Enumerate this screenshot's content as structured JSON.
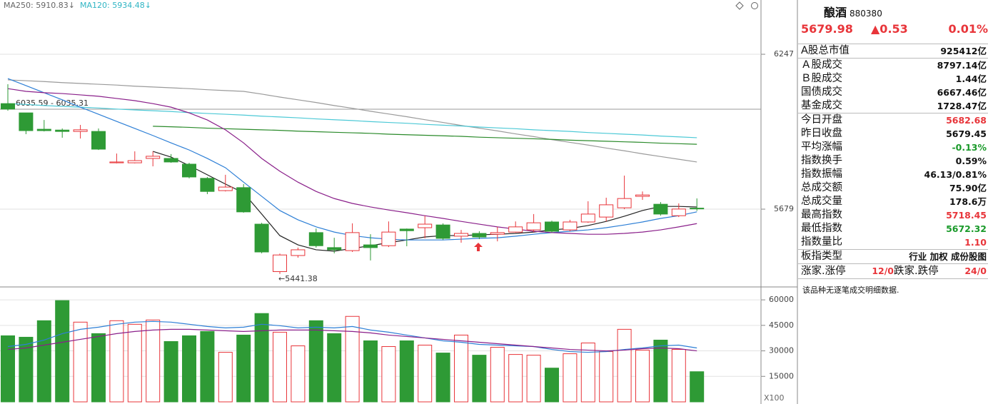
{
  "chart_data": [
    {
      "type": "candlestick",
      "indicators": [
        {
          "text": "MA250: 5910.83↓",
          "color": "#666666"
        },
        {
          "text": "MA120: 5934.48↓",
          "color": "#2fb5c4"
        }
      ],
      "open": [
        6066,
        6032,
        5972,
        5969,
        5964,
        5964,
        5849,
        5849,
        5865,
        5865,
        5844,
        5792,
        5747,
        5758,
        5624,
        5450,
        5509,
        5593,
        5538,
        5527,
        5548,
        5545,
        5606,
        5611,
        5621,
        5580,
        5590,
        5587,
        5595,
        5603,
        5632,
        5603,
        5632,
        5650,
        5684,
        5726,
        5697,
        5655,
        5682.68
      ],
      "high": [
        6137,
        6032,
        6006,
        5975,
        5988,
        5975,
        5883,
        5891,
        5891,
        5881,
        5849,
        5797,
        5805,
        5771,
        5629,
        5516,
        5538,
        5608,
        5574,
        5627,
        5587,
        5634,
        5608,
        5655,
        5627,
        5603,
        5598,
        5614,
        5634,
        5661,
        5637,
        5640,
        5708,
        5721,
        5802,
        5744,
        5705,
        5700,
        5718.45
      ],
      "low": [
        6040,
        5954,
        5964,
        5941,
        5938,
        5896,
        5847,
        5847,
        5836,
        5849,
        5792,
        5734,
        5744,
        5666,
        5517,
        5441.38,
        5501,
        5538,
        5517,
        5522,
        5491,
        5540,
        5543,
        5572,
        5566,
        5556,
        5569,
        5561,
        5593,
        5595,
        5593,
        5598,
        5629,
        5634,
        5679,
        5713,
        5655,
        5650,
        5672.32
      ],
      "close": [
        6046,
        5967,
        5967,
        5964,
        5970,
        5899,
        5852,
        5857,
        5873,
        5852,
        5797,
        5744,
        5760,
        5669,
        5522,
        5511,
        5530,
        5545,
        5530,
        5593,
        5538,
        5595,
        5600,
        5624,
        5572,
        5590,
        5577,
        5593,
        5614,
        5629,
        5598,
        5632,
        5661,
        5695,
        5718,
        5731,
        5661,
        5679.45,
        5679.98
      ],
      "up_color": "#e8353a",
      "down_color": "#2e9a35",
      "lines": [
        {
          "color": "#9a9a9a",
          "values": [
            6153,
            6150,
            6147,
            6143,
            6140,
            6137,
            6134,
            6130,
            6127,
            6124,
            6121,
            6117,
            6114,
            6111,
            6101,
            6090,
            6080,
            6070,
            6059,
            6049,
            6038,
            6028,
            6018,
            6007,
            5997,
            5986,
            5976,
            5966,
            5955,
            5945,
            5934,
            5924,
            5914,
            5903,
            5893,
            5882,
            5872,
            5862,
            5852
          ]
        },
        {
          "color": "#4cc9d6",
          "values": [
            6066,
            6063,
            6059,
            6056,
            6053,
            6050,
            6046,
            6043,
            6040,
            6037,
            6033,
            6030,
            6027,
            6024,
            6020,
            6017,
            6014,
            6010,
            6007,
            6004,
            6000,
            5997,
            5994,
            5990,
            5987,
            5984,
            5980,
            5977,
            5974,
            5970,
            5967,
            5964,
            5960,
            5957,
            5954,
            5951,
            5947,
            5944,
            5941
          ]
        },
        {
          "color": "#2a8a2a",
          "values": [
            null,
            null,
            null,
            null,
            null,
            null,
            null,
            null,
            5983,
            5981,
            5979,
            5976,
            5974,
            5972,
            5970,
            5968,
            5965,
            5963,
            5961,
            5959,
            5957,
            5954,
            5952,
            5950,
            5948,
            5946,
            5943,
            5941,
            5939,
            5937,
            5935,
            5932,
            5930,
            5928,
            5926,
            5924,
            5921,
            5919,
            5917
          ]
        },
        {
          "color": "#222222",
          "values": [
            null,
            null,
            null,
            null,
            null,
            null,
            null,
            null,
            5891,
            5870,
            5839,
            5805,
            5771,
            5739,
            5661,
            5582,
            5548,
            5530,
            5525,
            5535,
            5545,
            5556,
            5566,
            5577,
            5582,
            5582,
            5585,
            5587,
            5590,
            5595,
            5603,
            5608,
            5619,
            5634,
            5653,
            5674,
            5689,
            5689,
            5687
          ]
        },
        {
          "color": "#2d7fd6",
          "values": [
            6158,
            6132,
            6106,
            6080,
            6053,
            6027,
            6001,
            5975,
            5949,
            5922,
            5896,
            5865,
            5831,
            5778,
            5726,
            5674,
            5640,
            5614,
            5595,
            5582,
            5574,
            5569,
            5566,
            5566,
            5566,
            5569,
            5572,
            5574,
            5580,
            5587,
            5593,
            5598,
            5603,
            5611,
            5621,
            5632,
            5645,
            5655,
            5669
          ]
        },
        {
          "color": "#8a1f8a",
          "values": [
            6121,
            6111,
            6106,
            6103,
            6098,
            6093,
            6085,
            6077,
            6066,
            6053,
            6032,
            6006,
            5970,
            5922,
            5865,
            5818,
            5778,
            5744,
            5718,
            5700,
            5687,
            5676,
            5666,
            5655,
            5645,
            5634,
            5624,
            5614,
            5606,
            5598,
            5593,
            5590,
            5587,
            5587,
            5590,
            5595,
            5603,
            5614,
            5626
          ]
        }
      ],
      "annotations": [
        "6035.59 - 6035.31",
        "←5441.38"
      ],
      "ylim": [
        5399,
        6446
      ],
      "yticks": [
        5679,
        6247
      ]
    },
    {
      "type": "bar",
      "values": [
        38870,
        38020,
        47740,
        59570,
        46900,
        40140,
        47740,
        45630,
        48160,
        35490,
        38870,
        41400,
        29150,
        39290,
        51970,
        40980,
        32950,
        47740,
        40140,
        50280,
        35910,
        32530,
        35910,
        33380,
        28730,
        39290,
        27460,
        32110,
        27880,
        27460,
        19860,
        28310,
        34640,
        29570,
        42670,
        30420,
        36330,
        30840,
        17740
      ],
      "lines": [
        {
          "color": "#2d7fd6",
          "values": [
            32530,
            33800,
            36330,
            40140,
            42670,
            43940,
            45630,
            46900,
            47320,
            46900,
            45630,
            44360,
            43520,
            43940,
            45630,
            44790,
            43520,
            43940,
            43520,
            44360,
            42250,
            40980,
            39290,
            37600,
            35910,
            35070,
            33800,
            33380,
            32950,
            32530,
            30840,
            29570,
            29150,
            29570,
            30840,
            31690,
            32950,
            33380,
            31690
          ]
        },
        {
          "color": "#8a1f8a",
          "values": [
            30840,
            31690,
            33380,
            35070,
            36760,
            38450,
            40140,
            41400,
            42250,
            42670,
            42670,
            42250,
            41830,
            41400,
            41830,
            42250,
            42250,
            42250,
            41830,
            41400,
            40560,
            39290,
            38450,
            37600,
            36760,
            35910,
            35070,
            34220,
            33380,
            32530,
            31690,
            30840,
            30420,
            30000,
            30420,
            31270,
            31690,
            31270,
            30000
          ]
        }
      ],
      "unit_label": "X100",
      "ylim": [
        0,
        66340
      ],
      "yticks": [
        15000,
        30000,
        45000,
        60000
      ]
    }
  ],
  "quote_panel": {
    "name": "酿酒",
    "code": "880380",
    "price": "5679.98",
    "change": "▲0.53",
    "change_pct": "0.01%",
    "price_color": "#e8353a",
    "groups": [
      [
        {
          "label": "A股总市值",
          "value": "925412亿"
        }
      ],
      [
        {
          "label": "Ａ股成交",
          "value": "8797.14亿"
        },
        {
          "label": "Ｂ股成交",
          "value": "1.44亿"
        },
        {
          "label": "国债成交",
          "value": "6667.46亿"
        },
        {
          "label": "基金成交",
          "value": "1728.47亿"
        }
      ],
      [
        {
          "label": "今日开盘",
          "value": "5682.68",
          "color": "#e8353a"
        },
        {
          "label": "昨日收盘",
          "value": "5679.45"
        },
        {
          "label": "平均涨幅",
          "value": "-0.13%",
          "color": "#1a9a2a"
        },
        {
          "label": "指数换手",
          "value": "0.59%"
        },
        {
          "label": "指数振幅",
          "value": "46.13/0.81%"
        },
        {
          "label": "总成交额",
          "value": "75.90亿"
        },
        {
          "label": "总成交量",
          "value": "178.6万"
        },
        {
          "label": "最高指数",
          "value": "5718.45",
          "color": "#e8353a"
        },
        {
          "label": "最低指数",
          "value": "5672.32",
          "color": "#1a9a2a"
        },
        {
          "label": "指数量比",
          "value": "1.10",
          "color": "#e8353a"
        }
      ],
      [
        {
          "label": "板指类型",
          "value": "行业 加权 成份股图"
        }
      ]
    ],
    "limit_row": {
      "up_label": "涨家.涨停",
      "up_value": "12/0",
      "down_label": "跌家.跌停",
      "down_value": "24/0",
      "value_color": "#e8353a"
    },
    "note": "该品种无逐笔成交明细数据."
  }
}
